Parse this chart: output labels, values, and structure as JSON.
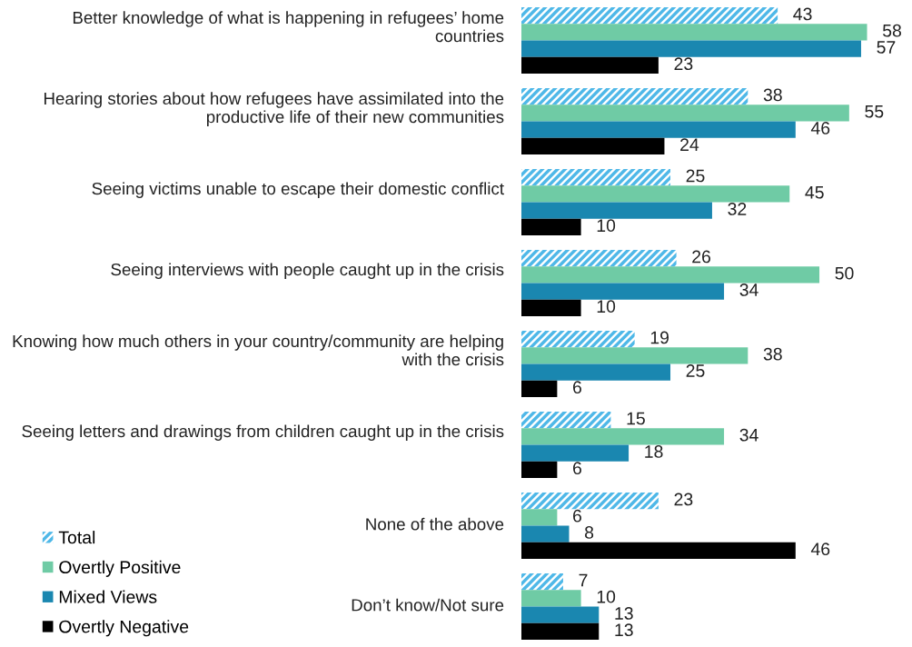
{
  "chart_data": {
    "type": "bar",
    "orientation": "horizontal",
    "categories": [
      "Better knowledge of what is happening in refugees’ home countries",
      "Hearing stories about how refugees have assimilated into the productive life of their new communities",
      "Seeing victims unable to escape their domestic conflict",
      "Seeing interviews with people caught up in the crisis",
      "Knowing how much others in your country/community are helping with the crisis",
      "Seeing letters and drawings from children caught up in the crisis",
      "None of the above",
      "Don’t know/Not sure"
    ],
    "series": [
      {
        "name": "Total",
        "color": "#4fb8e8",
        "values": [
          43,
          38,
          25,
          26,
          19,
          15,
          23,
          7
        ]
      },
      {
        "name": "Overtly Positive",
        "color": "#6fcba5",
        "values": [
          58,
          55,
          45,
          50,
          38,
          34,
          6,
          10
        ]
      },
      {
        "name": "Mixed Views",
        "color": "#1a87b0",
        "values": [
          57,
          46,
          32,
          34,
          25,
          18,
          8,
          13
        ]
      },
      {
        "name": "Overtly Negative",
        "color": "#000000",
        "values": [
          23,
          24,
          10,
          10,
          6,
          6,
          46,
          13
        ]
      }
    ],
    "data_labels": true,
    "legend": "bottom left"
  }
}
